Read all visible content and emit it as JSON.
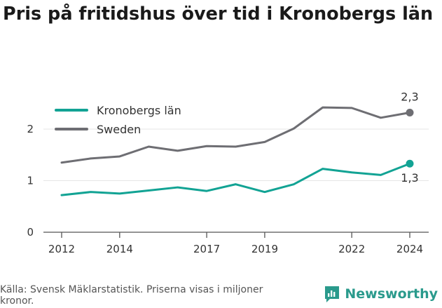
{
  "title": "Pris på fritidshus över tid i Kronobergs län",
  "source": "Källa: Svensk Mäklarstatistik. Priserna visas i miljoner kronor.",
  "brand": {
    "name": "Newsworthy",
    "icon": "newsworthy-logo-icon"
  },
  "colors": {
    "kronoberg": "#12a394",
    "sweden": "#6e6e73",
    "axis": "#555555",
    "grid": "#e6e6e6"
  },
  "chart_data": {
    "type": "line",
    "x": [
      2012,
      2013,
      2014,
      2015,
      2016,
      2017,
      2018,
      2019,
      2020,
      2021,
      2022,
      2023,
      2024
    ],
    "xticks": [
      "2012",
      "2014",
      "2017",
      "2019",
      "2022",
      "2024"
    ],
    "yticks": [
      "0",
      "1",
      "2"
    ],
    "ylim": [
      0,
      2.6
    ],
    "xlim": [
      2011.6,
      2024.4
    ],
    "grid": true,
    "legend_position": "top-left",
    "series": [
      {
        "name": "Kronobergs län",
        "color": "#12a394",
        "values": [
          0.72,
          0.78,
          0.75,
          0.81,
          0.87,
          0.8,
          0.93,
          0.78,
          0.93,
          1.23,
          1.16,
          1.11,
          1.33
        ],
        "end_label": "1,3"
      },
      {
        "name": "Sweden",
        "color": "#6e6e73",
        "values": [
          1.35,
          1.43,
          1.47,
          1.66,
          1.58,
          1.67,
          1.66,
          1.75,
          2.01,
          2.42,
          2.41,
          2.22,
          2.32
        ],
        "end_label": "2,3"
      }
    ]
  }
}
